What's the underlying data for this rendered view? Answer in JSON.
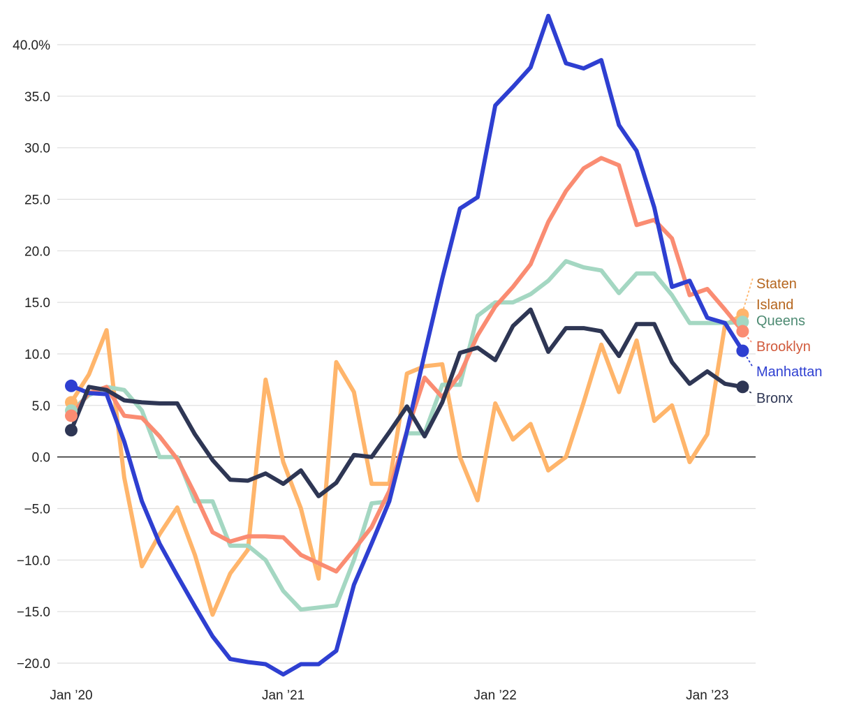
{
  "chart_data": {
    "type": "line",
    "title": "",
    "xlabel": "",
    "ylabel": "",
    "ylim": [
      -20,
      40
    ],
    "y_ticks": [
      {
        "value": 40,
        "label": "40.0%"
      },
      {
        "value": 35,
        "label": "35.0"
      },
      {
        "value": 30,
        "label": "30.0"
      },
      {
        "value": 25,
        "label": "25.0"
      },
      {
        "value": 20,
        "label": "20.0"
      },
      {
        "value": 15,
        "label": "15.0"
      },
      {
        "value": 10,
        "label": "10.0"
      },
      {
        "value": 5,
        "label": "5.0"
      },
      {
        "value": 0,
        "label": "0.0"
      },
      {
        "value": -5,
        "label": "−5.0"
      },
      {
        "value": -10,
        "label": "−10.0"
      },
      {
        "value": -15,
        "label": "−15.0"
      },
      {
        "value": -20,
        "label": "−20.0"
      }
    ],
    "x_ticks": [
      {
        "index": 0,
        "label": "Jan ’20"
      },
      {
        "index": 12,
        "label": "Jan ’21"
      },
      {
        "index": 24,
        "label": "Jan ’22"
      },
      {
        "index": 36,
        "label": "Jan ’23"
      }
    ],
    "grid": true,
    "series": [
      {
        "name": "Staten Island",
        "label_lines": [
          "Staten",
          "Island"
        ],
        "color": "#ffb56b",
        "label_color": "#b5651d",
        "values": [
          5.3,
          8.0,
          12.3,
          -2.0,
          -10.6,
          -7.5,
          -4.9,
          -9.5,
          -15.3,
          -11.3,
          -9.0,
          7.5,
          -0.5,
          -5.0,
          -11.8,
          9.2,
          6.3,
          -2.6,
          -2.6,
          8.1,
          8.8,
          9.0,
          0.0,
          -4.2,
          5.2,
          1.7,
          3.2,
          -1.3,
          0.0,
          5.3,
          10.9,
          6.3,
          11.3,
          3.5,
          5.0,
          -0.5,
          2.2,
          12.8,
          13.8
        ]
      },
      {
        "name": "Queens",
        "label_lines": [
          "Queens"
        ],
        "color": "#a4d7c2",
        "label_color": "#4e8b73",
        "values": [
          4.5,
          6.0,
          6.8,
          6.5,
          4.5,
          0.0,
          0.0,
          -4.3,
          -4.3,
          -8.6,
          -8.6,
          -10.0,
          -13.0,
          -14.8,
          -14.6,
          -14.4,
          -10.0,
          -4.5,
          -4.3,
          2.3,
          2.3,
          7.0,
          7.0,
          13.7,
          15.0,
          15.0,
          15.8,
          17.1,
          19.0,
          18.4,
          18.1,
          15.9,
          17.8,
          17.8,
          15.7,
          13.0,
          13.0,
          13.0,
          13.1
        ]
      },
      {
        "name": "Brooklyn",
        "label_lines": [
          "Brooklyn"
        ],
        "color": "#fa8c72",
        "label_color": "#d15a3c",
        "values": [
          4.0,
          6.2,
          6.8,
          4.0,
          3.8,
          2.0,
          -0.2,
          -3.6,
          -7.3,
          -8.2,
          -7.7,
          -7.7,
          -7.8,
          -9.5,
          -10.3,
          -11.1,
          -9.0,
          -6.8,
          -3.3,
          2.5,
          7.7,
          5.8,
          8.0,
          11.8,
          14.6,
          16.5,
          18.7,
          22.8,
          25.8,
          28.0,
          29.0,
          28.3,
          22.5,
          23.0,
          21.2,
          15.7,
          16.3,
          14.3,
          12.2
        ]
      },
      {
        "name": "Manhattan",
        "label_lines": [
          "Manhattan"
        ],
        "color": "#2e3fd1",
        "label_color": "#2e3fd1",
        "values": [
          6.9,
          6.2,
          6.1,
          1.5,
          -4.3,
          -8.4,
          -11.5,
          -14.5,
          -17.4,
          -19.6,
          -19.9,
          -20.1,
          -21.1,
          -20.1,
          -20.1,
          -18.8,
          -12.4,
          -8.4,
          -4.3,
          2.5,
          10.0,
          17.3,
          24.1,
          25.2,
          34.1,
          35.9,
          37.8,
          42.8,
          38.2,
          37.7,
          38.5,
          32.2,
          29.7,
          24.2,
          16.5,
          17.1,
          13.5,
          13.0,
          10.3
        ]
      },
      {
        "name": "Bronx",
        "label_lines": [
          "Bronx"
        ],
        "color": "#2e3654",
        "label_color": "#2e3654",
        "values": [
          2.6,
          6.8,
          6.5,
          5.5,
          5.3,
          5.2,
          5.2,
          2.2,
          -0.3,
          -2.2,
          -2.3,
          -1.6,
          -2.6,
          -1.3,
          -3.8,
          -2.5,
          0.2,
          0.0,
          2.4,
          4.9,
          2.0,
          5.3,
          10.1,
          10.6,
          9.4,
          12.7,
          14.3,
          10.2,
          12.5,
          12.5,
          12.2,
          9.8,
          12.9,
          12.9,
          9.2,
          7.1,
          8.3,
          7.1,
          6.8
        ]
      }
    ]
  }
}
